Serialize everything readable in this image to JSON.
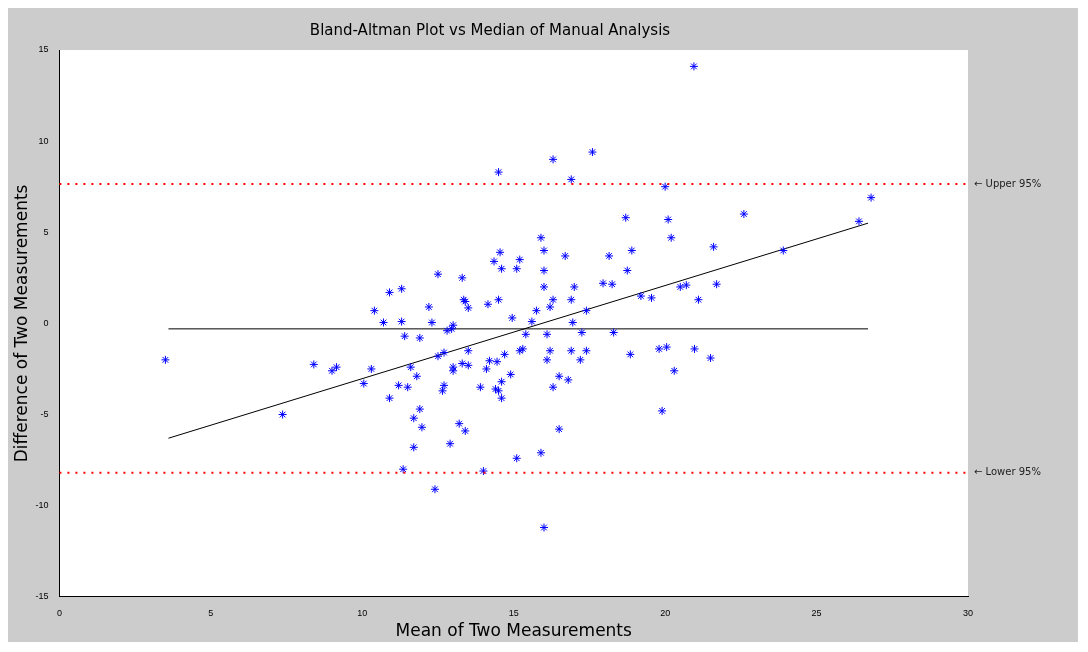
{
  "chart_data": {
    "type": "scatter",
    "title": "Bland-Altman Plot vs Median of Manual Analysis",
    "xlabel": "Mean of Two Measurements",
    "ylabel": "Difference of Two Measurements",
    "xlim": [
      0,
      30
    ],
    "xticks": [
      0,
      5,
      10,
      15,
      20,
      25,
      30
    ],
    "ylim": [
      -15,
      15
    ],
    "yticks": [
      -15,
      -10,
      -5,
      0,
      5,
      10,
      15
    ],
    "grid": false,
    "legend": false,
    "series": [
      {
        "type": "scatter",
        "marker": "cross",
        "color": "#0000ff",
        "x": [
          3.5,
          7.37,
          8.4,
          9.0,
          9.15,
          10.05,
          10.3,
          10.4,
          10.7,
          10.9,
          10.9,
          11.2,
          11.3,
          11.3,
          11.4,
          11.35,
          11.5,
          11.6,
          11.7,
          11.7,
          11.8,
          11.9,
          11.9,
          11.97,
          12.2,
          12.3,
          12.4,
          12.5,
          12.5,
          12.65,
          12.7,
          12.7,
          12.8,
          12.9,
          12.95,
          13.0,
          13.0,
          13.0,
          13.2,
          13.3,
          13.3,
          13.35,
          13.4,
          13.4,
          13.5,
          13.5,
          13.5,
          13.9,
          14.0,
          14.1,
          14.15,
          14.2,
          14.35,
          14.4,
          14.45,
          14.5,
          14.5,
          14.5,
          14.55,
          14.6,
          14.6,
          14.6,
          14.7,
          14.9,
          14.95,
          15.1,
          15.1,
          15.2,
          15.2,
          15.3,
          15.4,
          15.6,
          15.75,
          15.9,
          15.9,
          16.0,
          16.0,
          16.0,
          16.1,
          16.0,
          16.1,
          16.2,
          16.2,
          16.3,
          16.3,
          16.3,
          16.5,
          16.5,
          16.7,
          16.8,
          16.9,
          16.9,
          16.9,
          16.95,
          17.0,
          17.2,
          17.25,
          17.4,
          17.4,
          17.6,
          17.95,
          18.15,
          18.25,
          18.3,
          18.7,
          18.75,
          18.85,
          18.9,
          19.2,
          19.55,
          19.8,
          19.9,
          20.0,
          20.05,
          20.1,
          20.2,
          20.3,
          20.5,
          20.7,
          20.95,
          20.97,
          21.1,
          21.5,
          21.6,
          21.7,
          22.6,
          23.9,
          26.4,
          26.8
        ],
        "values": [
          -2.0,
          -5.0,
          -2.25,
          -2.6,
          -2.4,
          -3.3,
          -2.5,
          0.7,
          0.05,
          -4.1,
          1.7,
          -3.4,
          1.9,
          0.1,
          -0.7,
          -8.0,
          -3.5,
          -2.4,
          -5.2,
          -6.8,
          -2.9,
          -0.8,
          -4.7,
          -5.7,
          0.9,
          0.05,
          -9.1,
          -1.8,
          2.7,
          -3.7,
          -3.4,
          -1.6,
          -0.4,
          -6.6,
          -0.3,
          -2.6,
          -2.4,
          -0.1,
          -5.5,
          -2.2,
          2.5,
          1.3,
          -5.9,
          1.2,
          -1.5,
          -2.3,
          0.85,
          -3.5,
          -8.1,
          -2.5,
          1.05,
          -2.05,
          3.4,
          -3.6,
          -2.1,
          1.3,
          -3.7,
          8.3,
          3.9,
          -3.2,
          -4.1,
          3.0,
          -1.7,
          -2.8,
          0.3,
          -7.4,
          3.0,
          3.5,
          -1.5,
          -1.4,
          -0.6,
          0.1,
          0.7,
          4.7,
          -7.1,
          4.0,
          2.9,
          2.0,
          -2.0,
          -11.2,
          -0.6,
          0.9,
          -1.5,
          1.3,
          9.0,
          -3.5,
          -2.9,
          -5.8,
          3.7,
          -3.1,
          -1.5,
          7.9,
          1.3,
          0.05,
          2.0,
          -2.0,
          -0.5,
          0.7,
          -1.5,
          9.4,
          2.2,
          3.7,
          2.15,
          -0.5,
          5.8,
          2.9,
          -1.7,
          4.0,
          1.5,
          1.4,
          -1.4,
          -4.8,
          7.5,
          -1.3,
          5.7,
          4.7,
          -2.6,
          2.0,
          2.1,
          14.1,
          -1.4,
          1.3,
          -1.9,
          4.2,
          2.15,
          6.0,
          4.0,
          5.6,
          6.9
        ]
      },
      {
        "type": "line",
        "marker": "none",
        "color": "#000000",
        "x": [
          3.6,
          26.7
        ],
        "values": [
          -0.3,
          -0.3
        ]
      },
      {
        "type": "line",
        "marker": "none",
        "color": "#000000",
        "x": [
          3.6,
          26.7
        ],
        "values": [
          -6.3,
          5.5
        ]
      }
    ],
    "ref_lines": [
      {
        "axis": "y",
        "value": 7.65,
        "label": "← Upper 95%",
        "color": "#ff0000",
        "line_style": "dotted"
      },
      {
        "axis": "y",
        "value": -8.2,
        "label": "← Lower 95%",
        "color": "#ff0000",
        "line_style": "dotted"
      }
    ]
  }
}
